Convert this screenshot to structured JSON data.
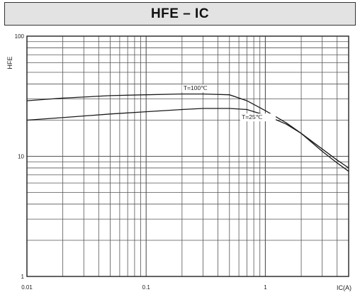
{
  "chart_data": {
    "type": "line",
    "title": "HFE – IC",
    "xlabel": "IC(A)",
    "ylabel": "HFE",
    "x_scale": "log",
    "y_scale": "log",
    "xlim": [
      0.01,
      5
    ],
    "ylim": [
      1,
      100
    ],
    "x_ticks": [
      {
        "value": 0.01,
        "label": "0.01"
      },
      {
        "value": 0.1,
        "label": "0.1"
      },
      {
        "value": 1,
        "label": "1"
      }
    ],
    "y_ticks": [
      {
        "value": 1,
        "label": "1"
      },
      {
        "value": 10,
        "label": "10"
      },
      {
        "value": 100,
        "label": "100"
      }
    ],
    "grid": true,
    "series": [
      {
        "name": "T=100℃",
        "x": [
          0.01,
          0.02,
          0.05,
          0.1,
          0.2,
          0.3,
          0.5,
          0.7,
          1.0,
          1.5,
          2.0,
          3.0,
          4.0,
          5.0
        ],
        "y": [
          29,
          30.5,
          32,
          32.5,
          33,
          33,
          32.5,
          29,
          24,
          19,
          15.5,
          11,
          8.8,
          7.5
        ]
      },
      {
        "name": "T=25℃",
        "x": [
          0.01,
          0.02,
          0.05,
          0.1,
          0.2,
          0.3,
          0.5,
          0.7,
          1.0,
          1.5,
          2.0,
          3.0,
          4.0,
          5.0
        ],
        "y": [
          20,
          21,
          22.5,
          23.5,
          24.5,
          25,
          25,
          24.5,
          22,
          18.5,
          15.5,
          11.5,
          9.3,
          8
        ]
      }
    ],
    "annotations": [
      {
        "text": "T=100℃",
        "series": 0
      },
      {
        "text": "T=25℃",
        "series": 1
      }
    ]
  }
}
